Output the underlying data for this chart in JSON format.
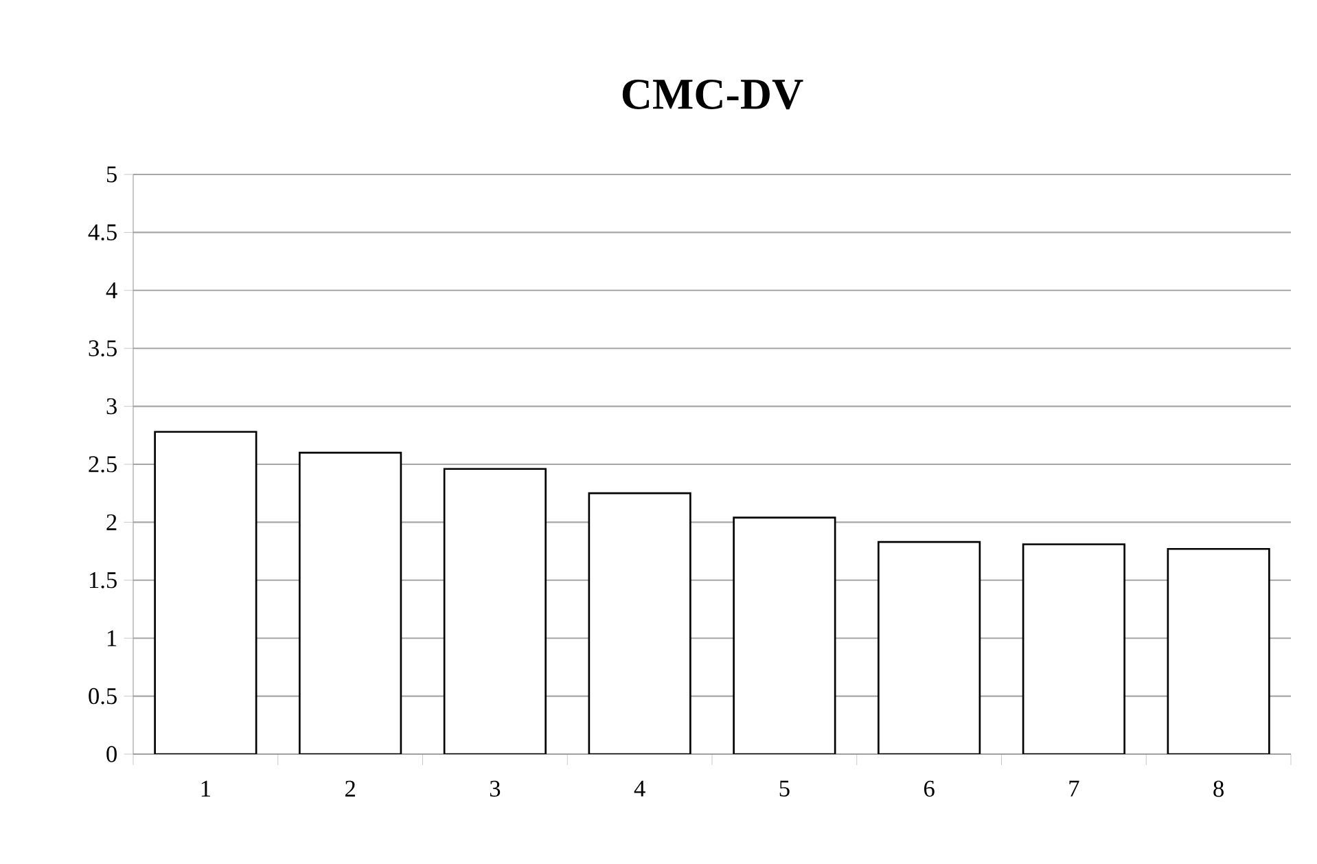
{
  "chart_data": {
    "type": "bar",
    "title": "CMC-DV",
    "categories": [
      "1",
      "2",
      "3",
      "4",
      "5",
      "6",
      "7",
      "8"
    ],
    "values": [
      2.78,
      2.6,
      2.46,
      2.25,
      2.04,
      1.83,
      1.81,
      1.77
    ],
    "color": "#ffffff",
    "ylim": [
      0,
      5
    ],
    "yticks": [
      0,
      0.5,
      1,
      1.5,
      2,
      2.5,
      3,
      3.5,
      4,
      4.5,
      5
    ],
    "grid": "y"
  }
}
